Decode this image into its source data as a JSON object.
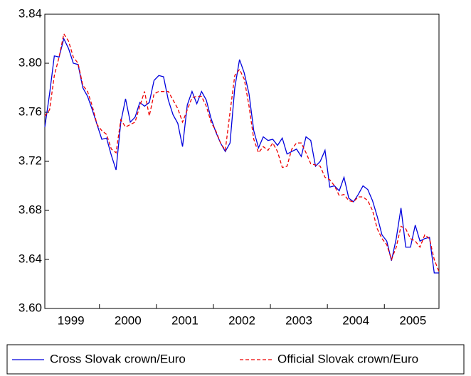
{
  "chart_data": {
    "type": "line",
    "categories": [
      null,
      null,
      null,
      null,
      null,
      null,
      "1999",
      null,
      null,
      null,
      null,
      null,
      null,
      null,
      null,
      null,
      null,
      null,
      "2000",
      null,
      null,
      null,
      null,
      null,
      null,
      null,
      null,
      null,
      null,
      null,
      "2001",
      null,
      null,
      null,
      null,
      null,
      null,
      null,
      null,
      null,
      null,
      null,
      "2002",
      null,
      null,
      null,
      null,
      null,
      null,
      null,
      null,
      null,
      null,
      null,
      "2003",
      null,
      null,
      null,
      null,
      null,
      null,
      null,
      null,
      null,
      null,
      null,
      "2004",
      null,
      null,
      null,
      null,
      null,
      null,
      null,
      null,
      null,
      null,
      null,
      "2005",
      null,
      null,
      null,
      null,
      null
    ],
    "series": [
      {
        "name": "Cross Slovak crown/Euro",
        "color": "#0000dd",
        "dash": "none",
        "values": [
          3.748,
          3.775,
          3.806,
          3.805,
          3.82,
          3.812,
          3.8,
          3.799,
          3.78,
          3.773,
          3.762,
          3.75,
          3.738,
          3.739,
          3.725,
          3.713,
          3.752,
          3.771,
          3.752,
          3.756,
          3.768,
          3.765,
          3.768,
          3.786,
          3.79,
          3.789,
          3.77,
          3.758,
          3.751,
          3.732,
          3.766,
          3.777,
          3.767,
          3.777,
          3.77,
          3.755,
          3.744,
          3.735,
          3.728,
          3.735,
          3.78,
          3.803,
          3.792,
          3.775,
          3.745,
          3.731,
          3.74,
          3.737,
          3.738,
          3.733,
          3.739,
          3.726,
          3.728,
          3.73,
          3.724,
          3.74,
          3.737,
          3.716,
          3.72,
          3.729,
          3.699,
          3.7,
          3.696,
          3.707,
          3.69,
          3.687,
          3.693,
          3.7,
          3.697,
          3.688,
          3.675,
          3.66,
          3.655,
          3.639,
          3.657,
          3.682,
          3.65,
          3.65,
          3.668,
          3.655,
          3.657,
          3.658,
          3.629,
          3.629
        ]
      },
      {
        "name": "Official Slovak crown/Euro",
        "color": "#ee0000",
        "dash": "dashed",
        "values": [
          3.757,
          3.762,
          3.79,
          3.805,
          3.824,
          3.818,
          3.805,
          3.8,
          3.782,
          3.777,
          3.765,
          3.75,
          3.745,
          3.742,
          3.73,
          3.727,
          3.754,
          3.748,
          3.75,
          3.752,
          3.765,
          3.777,
          3.757,
          3.775,
          3.777,
          3.777,
          3.777,
          3.77,
          3.763,
          3.752,
          3.762,
          3.772,
          3.773,
          3.773,
          3.765,
          3.752,
          3.745,
          3.735,
          3.729,
          3.76,
          3.79,
          3.795,
          3.787,
          3.765,
          3.738,
          3.727,
          3.732,
          3.729,
          3.735,
          3.728,
          3.715,
          3.716,
          3.73,
          3.735,
          3.735,
          3.727,
          3.718,
          3.717,
          3.716,
          3.707,
          3.705,
          3.7,
          3.692,
          3.693,
          3.688,
          3.687,
          3.691,
          3.691,
          3.688,
          3.68,
          3.665,
          3.657,
          3.652,
          3.64,
          3.65,
          3.667,
          3.665,
          3.657,
          3.655,
          3.65,
          3.66,
          3.657,
          3.64,
          3.63
        ]
      }
    ],
    "ylim": [
      3.6,
      3.84
    ],
    "yticks": [
      {
        "value": 3.6,
        "label": "3.60"
      },
      3.64,
      3.68,
      3.72,
      {
        "value": 3.76,
        "label": "3.76"
      },
      {
        "value": 3.8,
        "label": "3.80"
      },
      3.84
    ],
    "legend": "bottom"
  }
}
